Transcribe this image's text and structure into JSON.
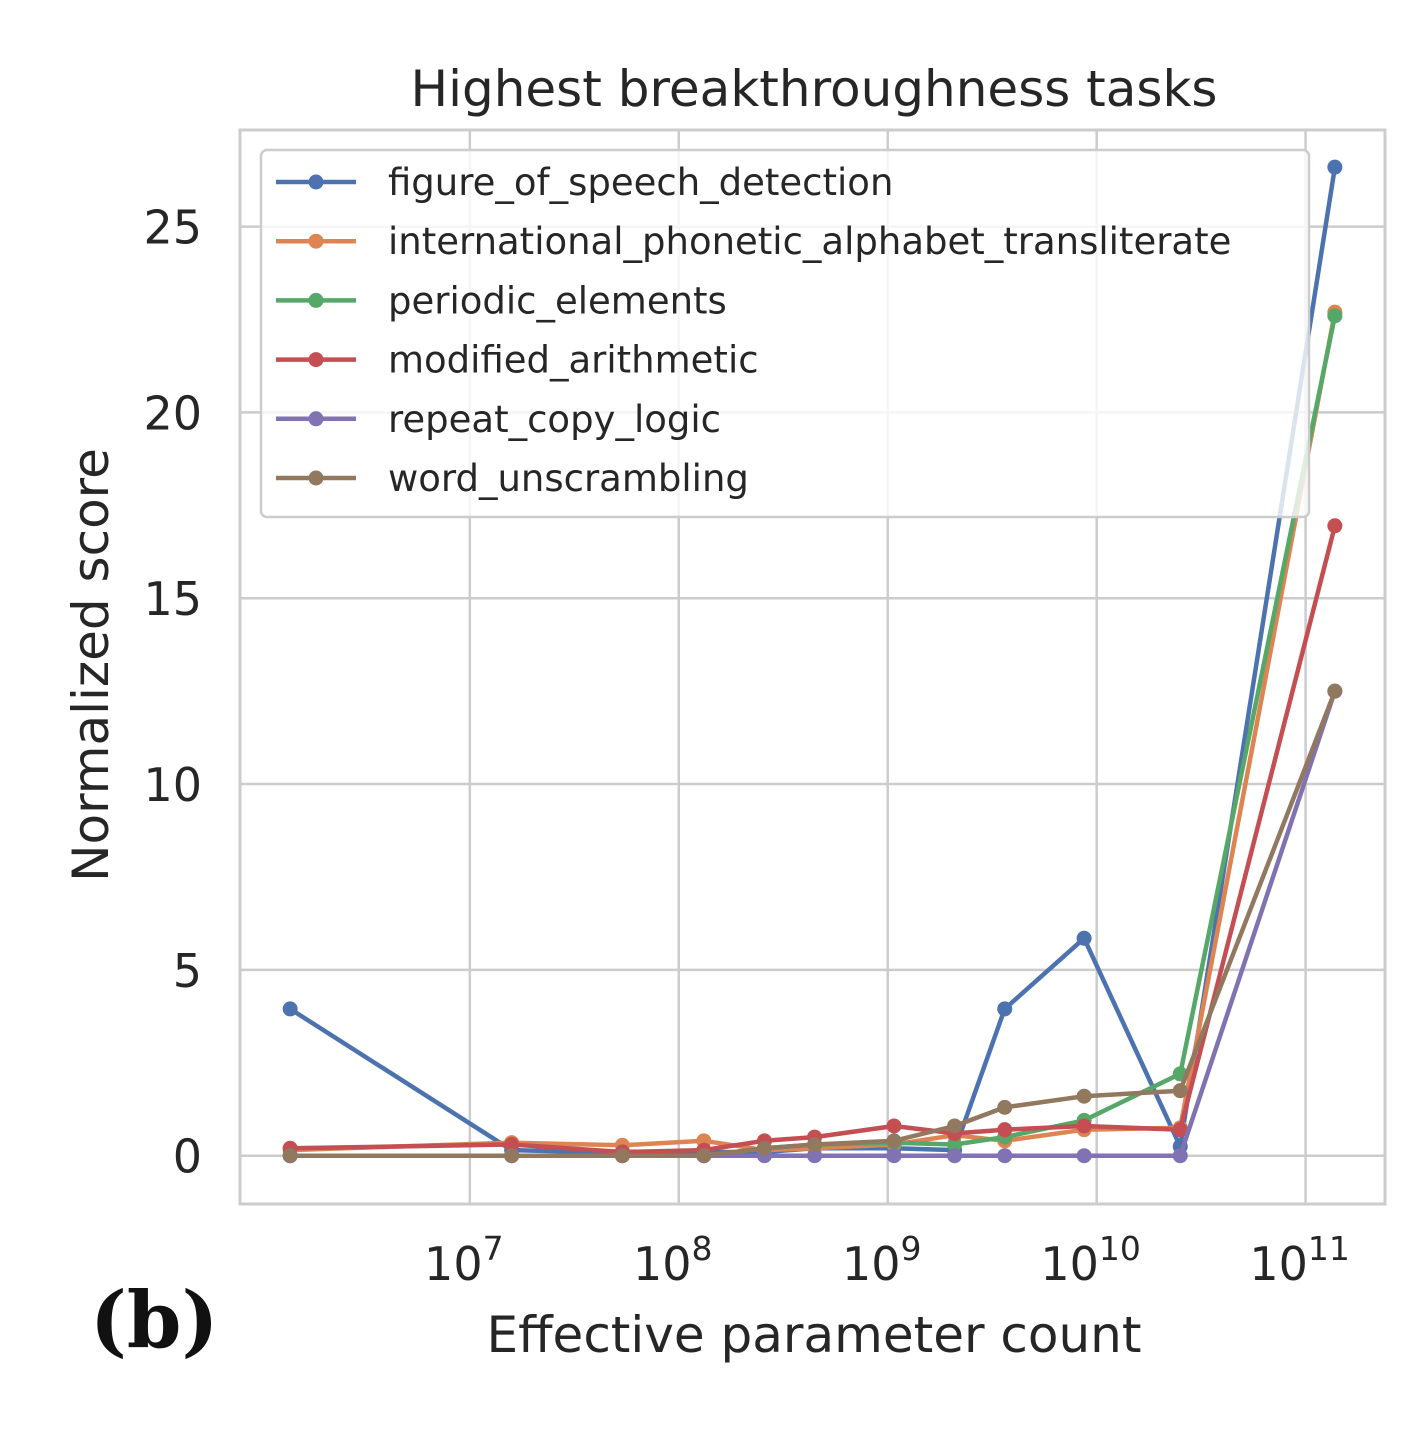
{
  "panel_label": "(b)",
  "chart_data": {
    "type": "line",
    "title": "Highest breakthroughness tasks",
    "xlabel": "Effective parameter count",
    "ylabel": "Normalized score",
    "xscale": "log",
    "xlim_log10": [
      5.9,
      11.38
    ],
    "ylim": [
      -1.3,
      27.6
    ],
    "yticks": [
      0,
      5,
      10,
      15,
      20,
      25
    ],
    "ytick_labels": [
      "0",
      "5",
      "10",
      "15",
      "20",
      "25"
    ],
    "xticks_log10": [
      7,
      8,
      9,
      10,
      11
    ],
    "xtick_bases": [
      "10",
      "10",
      "10",
      "10",
      "10"
    ],
    "xtick_exponents": [
      "7",
      "8",
      "9",
      "10",
      "11"
    ],
    "grid": true,
    "legend_position": "upper-left",
    "series": [
      {
        "name": "figure_of_speech_detection",
        "color": "#4c72b0",
        "x_log10": [
          6.14,
          7.2,
          7.73,
          8.12,
          8.41,
          8.65,
          9.03,
          9.32,
          9.56,
          9.94,
          10.4,
          11.14
        ],
        "y": [
          3.95,
          0.15,
          0.08,
          0.1,
          0.1,
          0.2,
          0.2,
          0.15,
          3.95,
          5.85,
          0.25,
          26.6
        ]
      },
      {
        "name": "international_phonetic_alphabet_transliterate",
        "color": "#dd8452",
        "x_log10": [
          6.14,
          7.2,
          7.73,
          8.12,
          8.41,
          8.65,
          9.03,
          9.32,
          9.56,
          9.94,
          10.4,
          11.14
        ],
        "y": [
          0.15,
          0.35,
          0.28,
          0.4,
          0.15,
          0.2,
          0.3,
          0.55,
          0.4,
          0.7,
          0.75,
          22.7
        ]
      },
      {
        "name": "periodic_elements",
        "color": "#55a868",
        "x_log10": [
          6.14,
          7.2,
          7.73,
          8.12,
          8.41,
          8.65,
          9.03,
          9.32,
          9.56,
          9.94,
          10.4,
          11.14
        ],
        "y": [
          0.0,
          0.0,
          0.0,
          0.0,
          0.2,
          0.3,
          0.35,
          0.3,
          0.5,
          0.95,
          2.2,
          22.6
        ]
      },
      {
        "name": "modified_arithmetic",
        "color": "#c44e52",
        "x_log10": [
          6.14,
          7.2,
          7.73,
          8.12,
          8.41,
          8.65,
          9.03,
          9.32,
          9.56,
          9.94,
          10.4,
          11.14
        ],
        "y": [
          0.2,
          0.3,
          0.1,
          0.15,
          0.4,
          0.5,
          0.8,
          0.6,
          0.7,
          0.8,
          0.7,
          16.95
        ]
      },
      {
        "name": "repeat_copy_logic",
        "color": "#8172b3",
        "x_log10": [
          6.14,
          7.2,
          7.73,
          8.12,
          8.41,
          8.65,
          9.03,
          9.32,
          9.56,
          9.94,
          10.4,
          11.14
        ],
        "y": [
          0.0,
          0.0,
          0.0,
          0.0,
          0.0,
          0.0,
          0.0,
          0.0,
          0.0,
          0.0,
          0.0,
          12.5
        ]
      },
      {
        "name": "word_unscrambling",
        "color": "#937860",
        "x_log10": [
          6.14,
          7.2,
          7.73,
          8.12,
          8.41,
          8.65,
          9.03,
          9.32,
          9.56,
          9.94,
          10.4,
          11.14
        ],
        "y": [
          0.0,
          0.0,
          0.0,
          0.0,
          0.2,
          0.3,
          0.4,
          0.8,
          1.3,
          1.6,
          1.75,
          12.5
        ]
      }
    ]
  }
}
